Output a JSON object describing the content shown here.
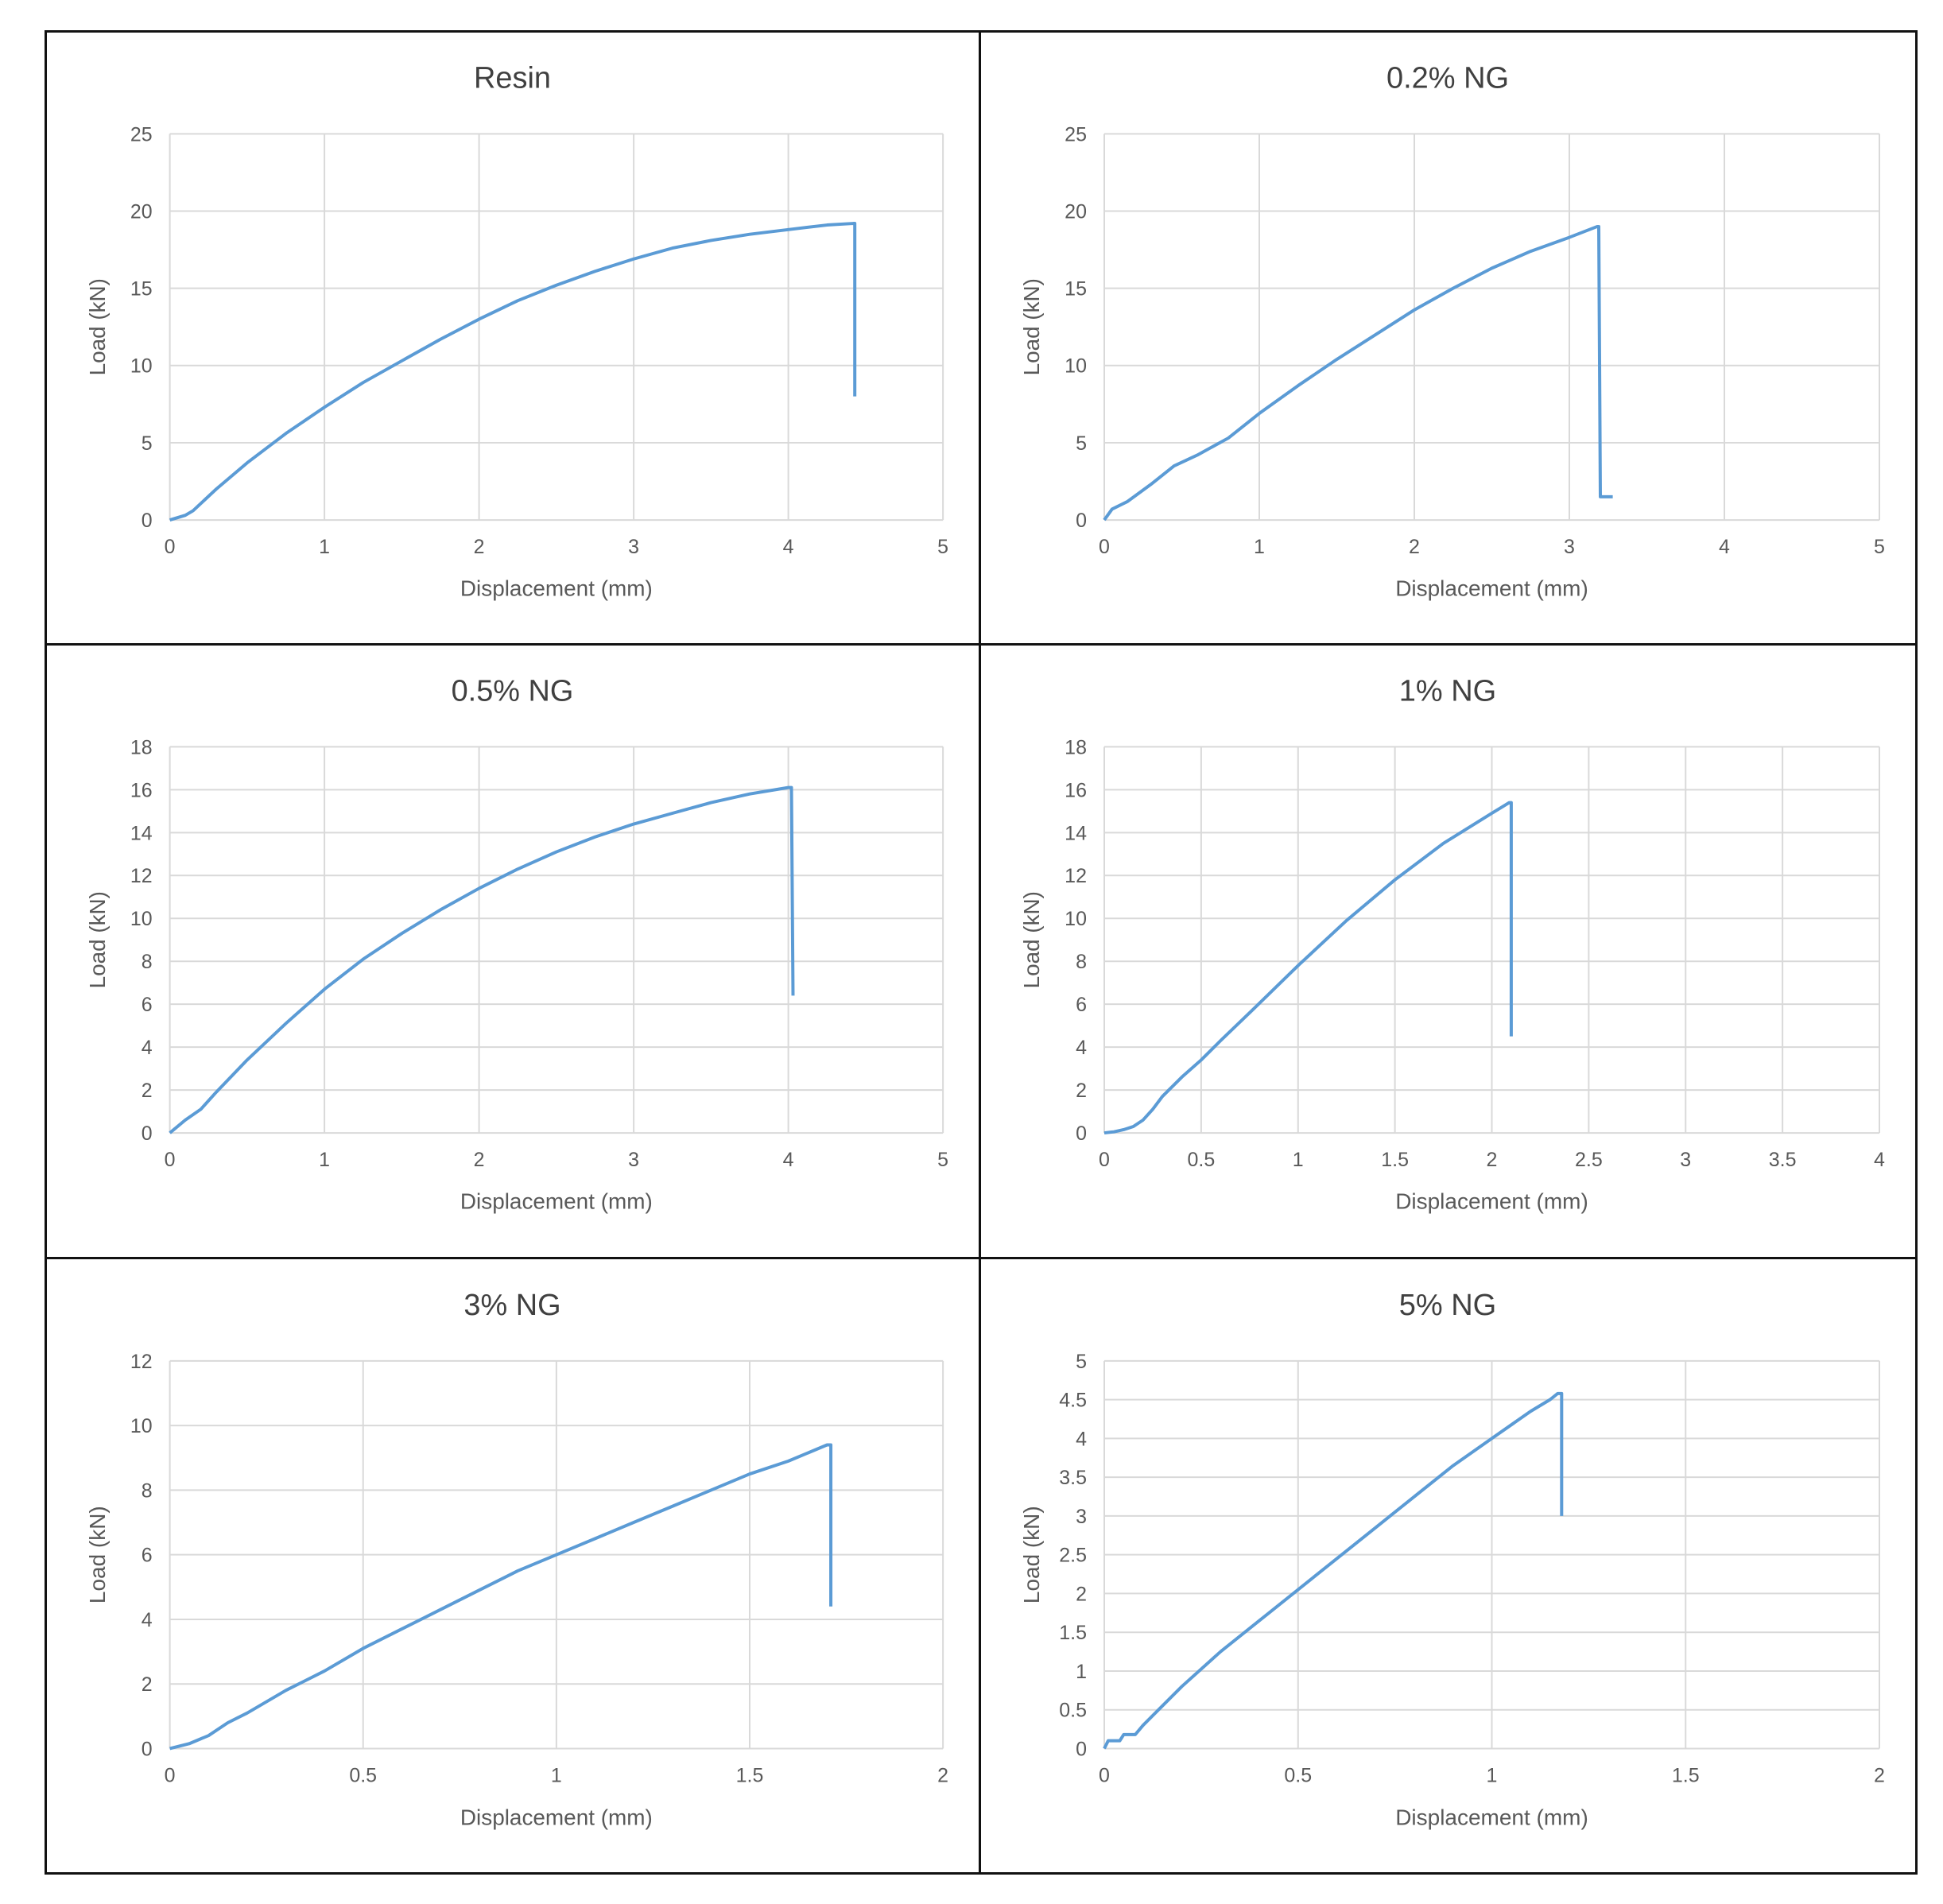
{
  "chart_data": [
    {
      "type": "line",
      "title": "Resin",
      "xlabel": "Displacement (mm)",
      "ylabel": "Load (kN)",
      "xlim": [
        0,
        5
      ],
      "ylim": [
        0,
        25
      ],
      "xticks": [
        0,
        1,
        2,
        3,
        4,
        5
      ],
      "xtick_labels": [
        "0",
        "1",
        "2",
        "3",
        "4",
        "5"
      ],
      "yticks": [
        0,
        5,
        10,
        15,
        20,
        25
      ],
      "ytick_labels": [
        "0",
        "5",
        "10",
        "15",
        "20",
        "25"
      ],
      "grid": true,
      "series": [
        {
          "color": "#5b9bd5",
          "x": [
            0,
            0.1,
            0.15,
            0.3,
            0.5,
            0.75,
            1,
            1.25,
            1.5,
            1.75,
            2,
            2.25,
            2.5,
            2.75,
            3,
            3.25,
            3.5,
            3.75,
            4,
            4.25,
            4.42,
            4.43,
            4.43
          ],
          "y": [
            0,
            0.3,
            0.6,
            2,
            3.7,
            5.6,
            7.3,
            8.9,
            10.3,
            11.7,
            13,
            14.2,
            15.2,
            16.1,
            16.9,
            17.6,
            18.1,
            18.5,
            18.8,
            19.1,
            19.2,
            19.2,
            8
          ]
        }
      ]
    },
    {
      "type": "line",
      "title": "0.2% NG",
      "xlabel": "Displacement (mm)",
      "ylabel": "Load (kN)",
      "xlim": [
        0,
        5
      ],
      "ylim": [
        0,
        25
      ],
      "xticks": [
        0,
        1,
        2,
        3,
        4,
        5
      ],
      "xtick_labels": [
        "0",
        "1",
        "2",
        "3",
        "4",
        "5"
      ],
      "yticks": [
        0,
        5,
        10,
        15,
        20,
        25
      ],
      "ytick_labels": [
        "0",
        "5",
        "10",
        "15",
        "20",
        "25"
      ],
      "grid": true,
      "series": [
        {
          "color": "#5b9bd5",
          "x": [
            0,
            0.05,
            0.15,
            0.3,
            0.45,
            0.6,
            0.8,
            1,
            1.25,
            1.5,
            1.75,
            2,
            2.25,
            2.5,
            2.75,
            3,
            3.18,
            3.19,
            3.2,
            3.28
          ],
          "y": [
            0,
            0.7,
            1.2,
            2.3,
            3.5,
            4.2,
            5.3,
            6.9,
            8.7,
            10.4,
            12,
            13.6,
            15,
            16.3,
            17.4,
            18.3,
            19,
            19,
            1.5,
            1.5
          ]
        }
      ]
    },
    {
      "type": "line",
      "title": "0.5% NG",
      "xlabel": "Displacement (mm)",
      "ylabel": "Load (kN)",
      "xlim": [
        0,
        5
      ],
      "ylim": [
        0,
        18
      ],
      "xticks": [
        0,
        1,
        2,
        3,
        4,
        5
      ],
      "xtick_labels": [
        "0",
        "1",
        "2",
        "3",
        "4",
        "5"
      ],
      "yticks": [
        0,
        2,
        4,
        6,
        8,
        10,
        12,
        14,
        16,
        18
      ],
      "ytick_labels": [
        "0",
        "2",
        "4",
        "6",
        "8",
        "10",
        "12",
        "14",
        "16",
        "18"
      ],
      "grid": true,
      "series": [
        {
          "color": "#5b9bd5",
          "x": [
            0,
            0.1,
            0.2,
            0.3,
            0.5,
            0.75,
            1,
            1.25,
            1.5,
            1.75,
            2,
            2.25,
            2.5,
            2.75,
            3,
            3.25,
            3.5,
            3.75,
            4.0,
            4.02,
            4.03
          ],
          "y": [
            0,
            0.6,
            1.1,
            1.9,
            3.4,
            5.1,
            6.7,
            8.1,
            9.3,
            10.4,
            11.4,
            12.3,
            13.1,
            13.8,
            14.4,
            14.9,
            15.4,
            15.8,
            16.1,
            16.1,
            6.4
          ]
        }
      ]
    },
    {
      "type": "line",
      "title": "1% NG",
      "xlabel": "Displacement (mm)",
      "ylabel": "Load (kN)",
      "xlim": [
        0,
        4
      ],
      "ylim": [
        0,
        18
      ],
      "xticks": [
        0,
        0.5,
        1,
        1.5,
        2,
        2.5,
        3,
        3.5,
        4
      ],
      "xtick_labels": [
        "0",
        "0.5",
        "1",
        "1.5",
        "2",
        "2.5",
        "3",
        "3.5",
        "4"
      ],
      "yticks": [
        0,
        2,
        4,
        6,
        8,
        10,
        12,
        14,
        16,
        18
      ],
      "ytick_labels": [
        "0",
        "2",
        "4",
        "6",
        "8",
        "10",
        "12",
        "14",
        "16",
        "18"
      ],
      "grid": true,
      "series": [
        {
          "color": "#5b9bd5",
          "x": [
            0,
            0.05,
            0.1,
            0.15,
            0.2,
            0.25,
            0.3,
            0.4,
            0.5,
            0.6,
            0.75,
            1,
            1.25,
            1.5,
            1.75,
            2,
            2.09,
            2.1,
            2.1
          ],
          "y": [
            0,
            0.05,
            0.15,
            0.3,
            0.6,
            1.1,
            1.7,
            2.6,
            3.4,
            4.3,
            5.6,
            7.8,
            9.9,
            11.8,
            13.5,
            14.9,
            15.4,
            15.4,
            4.5
          ]
        }
      ]
    },
    {
      "type": "line",
      "title": "3% NG",
      "xlabel": "Displacement (mm)",
      "ylabel": "Load (kN)",
      "xlim": [
        0,
        2
      ],
      "ylim": [
        0,
        12
      ],
      "xticks": [
        0,
        0.5,
        1,
        1.5,
        2
      ],
      "xtick_labels": [
        "0",
        "0.5",
        "1",
        "1.5",
        "2"
      ],
      "yticks": [
        0,
        2,
        4,
        6,
        8,
        10,
        12
      ],
      "ytick_labels": [
        "0",
        "2",
        "4",
        "6",
        "8",
        "10",
        "12"
      ],
      "grid": true,
      "series": [
        {
          "color": "#5b9bd5",
          "x": [
            0,
            0.05,
            0.1,
            0.15,
            0.2,
            0.3,
            0.4,
            0.5,
            0.6,
            0.7,
            0.8,
            0.9,
            1,
            1.1,
            1.2,
            1.3,
            1.4,
            1.5,
            1.6,
            1.7,
            1.71,
            1.71
          ],
          "y": [
            0,
            0.15,
            0.4,
            0.8,
            1.1,
            1.8,
            2.4,
            3.1,
            3.7,
            4.3,
            4.9,
            5.5,
            6.0,
            6.5,
            7.0,
            7.5,
            8.0,
            8.5,
            8.9,
            9.4,
            9.4,
            4.4
          ]
        }
      ]
    },
    {
      "type": "line",
      "title": "5% NG",
      "xlabel": "Displacement (mm)",
      "ylabel": "Load (kN)",
      "xlim": [
        0,
        2
      ],
      "ylim": [
        0,
        5
      ],
      "xticks": [
        0,
        0.5,
        1,
        1.5,
        2
      ],
      "xtick_labels": [
        "0",
        "0.5",
        "1",
        "1.5",
        "2"
      ],
      "yticks": [
        0,
        0.5,
        1,
        1.5,
        2,
        2.5,
        3,
        3.5,
        4,
        4.5,
        5
      ],
      "ytick_labels": [
        "0",
        "0.5",
        "1",
        "1.5",
        "2",
        "2.5",
        "3",
        "3.5",
        "4",
        "4.5",
        "5"
      ],
      "grid": true,
      "series": [
        {
          "color": "#5b9bd5",
          "x": [
            0,
            0.01,
            0.04,
            0.05,
            0.08,
            0.1,
            0.15,
            0.2,
            0.3,
            0.4,
            0.5,
            0.6,
            0.7,
            0.8,
            0.9,
            1,
            1.1,
            1.15,
            1.17,
            1.18,
            1.18
          ],
          "y": [
            0,
            0.1,
            0.1,
            0.18,
            0.18,
            0.3,
            0.55,
            0.8,
            1.25,
            1.65,
            2.05,
            2.45,
            2.85,
            3.25,
            3.65,
            4.0,
            4.35,
            4.5,
            4.58,
            4.58,
            3.0
          ]
        }
      ]
    }
  ]
}
